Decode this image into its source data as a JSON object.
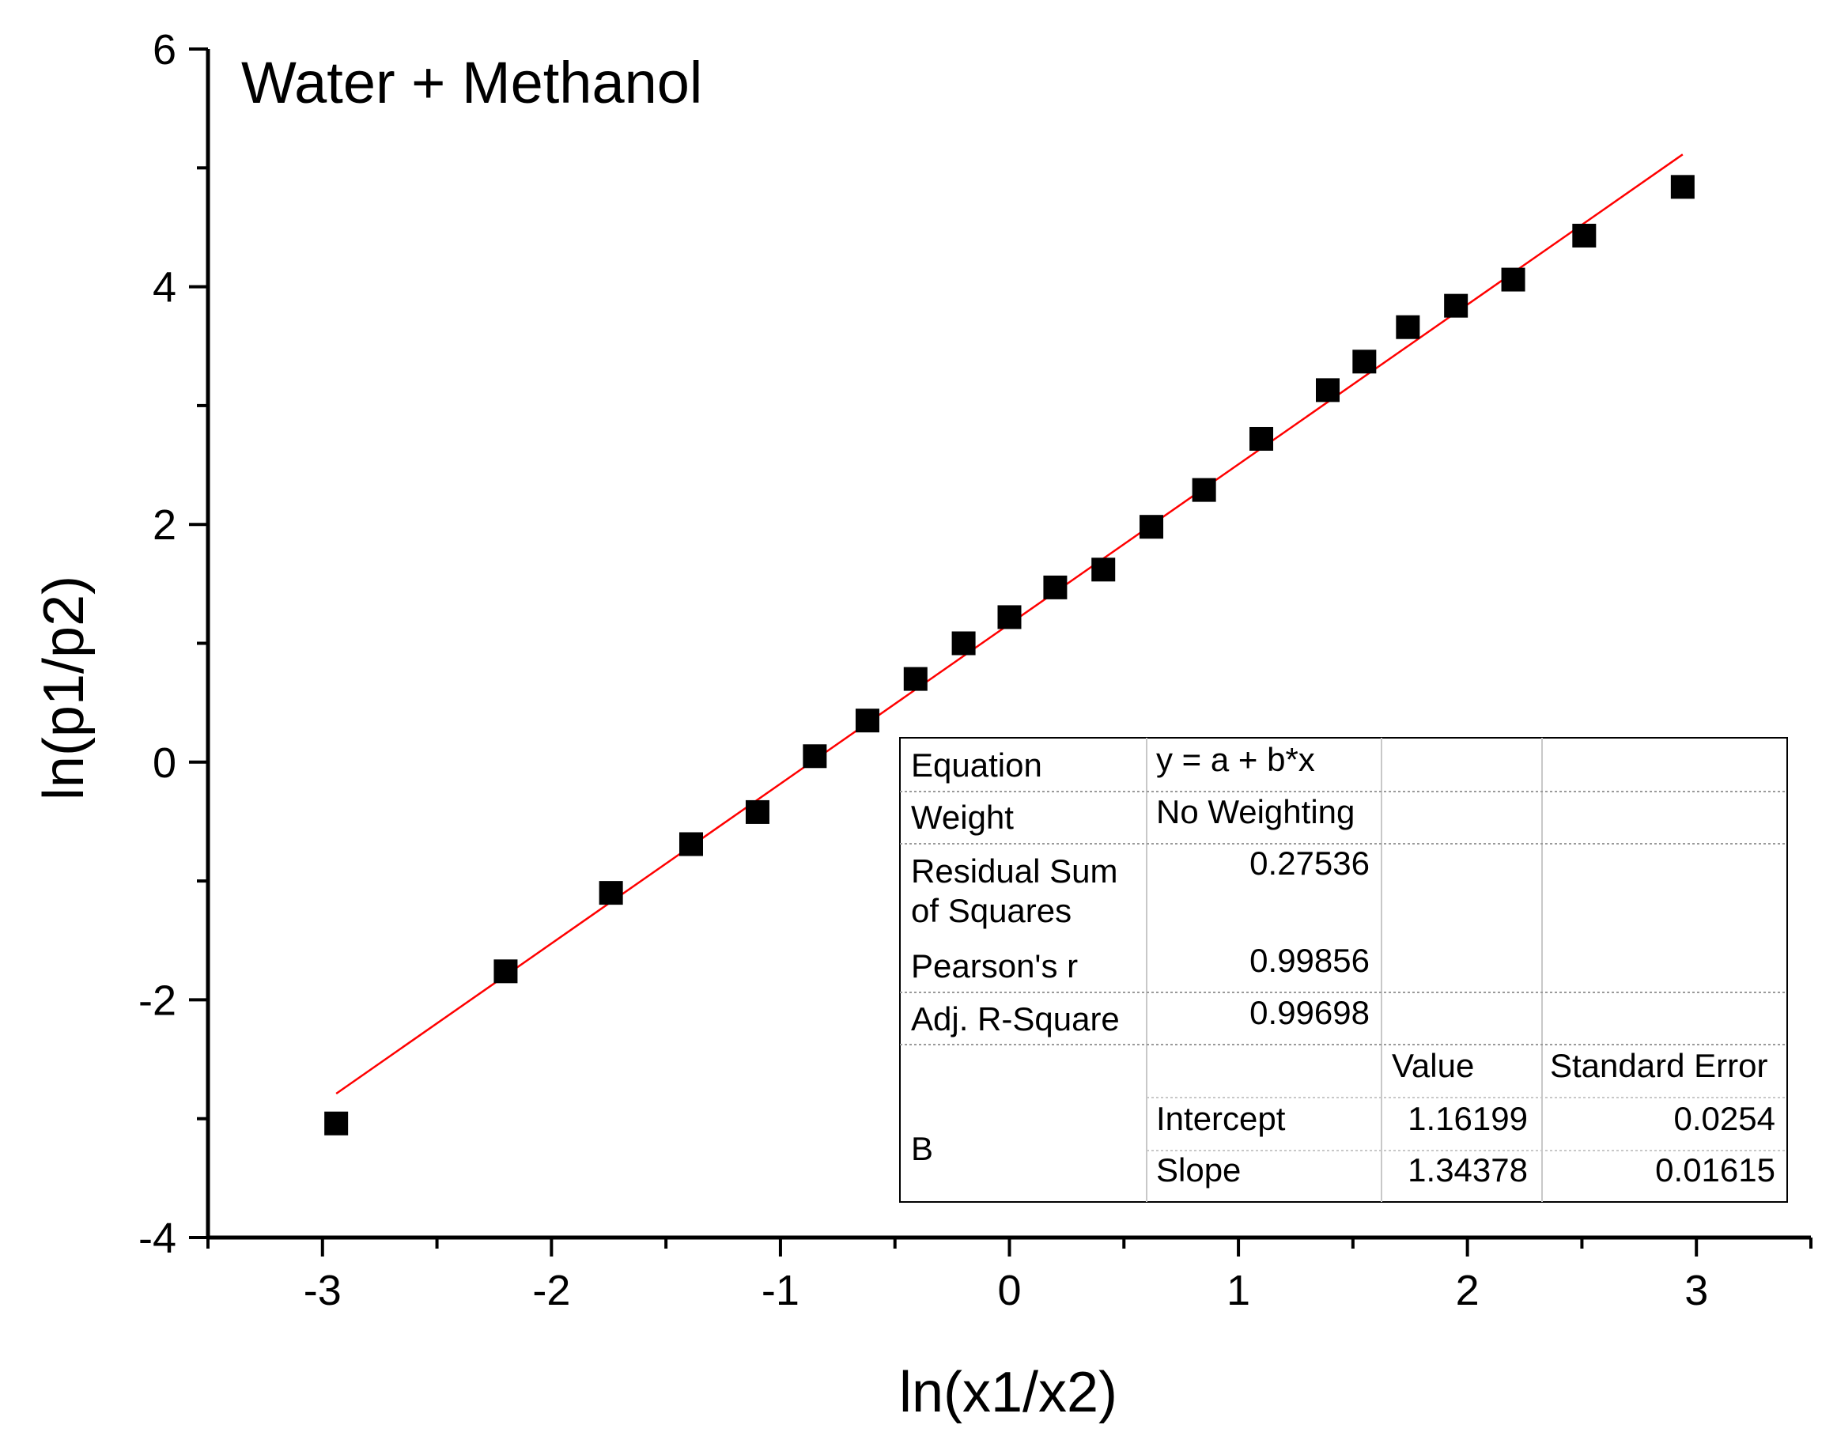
{
  "chart_data": {
    "type": "scatter",
    "title": "Water + Methanol",
    "xlabel": "ln(x1/x2)",
    "ylabel": "ln(p1/p2)",
    "xlim": [
      -3.5,
      3.5
    ],
    "ylim": [
      -4,
      6
    ],
    "xticks": [
      -3,
      -2,
      -1,
      0,
      1,
      2,
      3
    ],
    "xtick_labels": [
      "-3",
      "-2",
      "-1",
      "0",
      "1",
      "2",
      "3"
    ],
    "yticks": [
      -4,
      -2,
      0,
      2,
      4,
      6
    ],
    "ytick_labels": [
      "-4",
      "-2",
      "0",
      "2",
      "4",
      "6"
    ],
    "grid": false,
    "series": [
      {
        "name": "data",
        "marker": "square",
        "color": "#000000",
        "x": [
          -2.94,
          -2.2,
          -1.74,
          -1.39,
          -1.1,
          -0.85,
          -0.62,
          -0.41,
          -0.2,
          0.0,
          0.2,
          0.41,
          0.62,
          0.85,
          1.1,
          1.39,
          1.55,
          1.74,
          1.95,
          2.2,
          2.51,
          2.94
        ],
        "y": [
          -3.04,
          -1.76,
          -1.1,
          -0.69,
          -0.42,
          0.05,
          0.35,
          0.7,
          1.0,
          1.22,
          1.47,
          1.62,
          1.98,
          2.29,
          2.72,
          3.13,
          3.37,
          3.66,
          3.84,
          4.06,
          4.43,
          4.84
        ]
      },
      {
        "name": "linear fit",
        "type": "line",
        "color": "#ff0000",
        "x": [
          -2.94,
          2.94
        ],
        "y": [
          -2.789,
          5.113
        ]
      }
    ],
    "fit_table": {
      "rows": [
        {
          "label": "Equation",
          "value": "y = a + b*x"
        },
        {
          "label": "Weight",
          "value": "No Weighting"
        },
        {
          "label_line1": "Residual Sum",
          "label_line2": "of Squares",
          "value": "0.27536"
        },
        {
          "label": "Pearson's r",
          "value": "0.99856"
        },
        {
          "label": "Adj. R-Square",
          "value": "0.99698"
        }
      ],
      "param_header": {
        "value": "Value",
        "error": "Standard Error"
      },
      "group_label": "B",
      "params": [
        {
          "name": "Intercept",
          "value": "1.16199",
          "error": "0.0254"
        },
        {
          "name": "Slope",
          "value": "1.34378",
          "error": "0.01615"
        }
      ]
    }
  }
}
